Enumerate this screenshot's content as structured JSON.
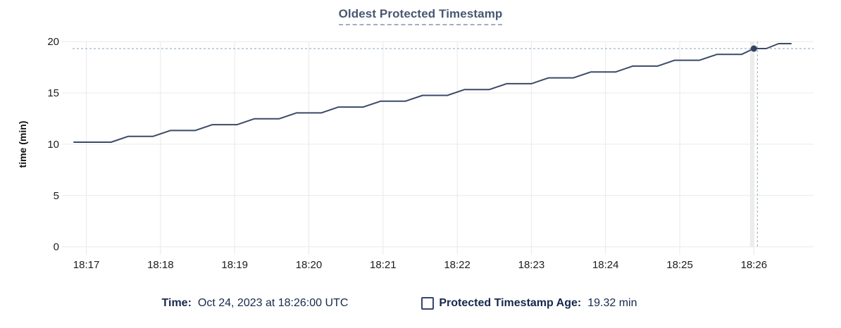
{
  "chart": {
    "title": "Oldest Protected Timestamp",
    "y_axis_label": "time (min)"
  },
  "legend": {
    "time_label": "Time:",
    "time_value": "Oct 24, 2023 at 18:26:00 UTC",
    "series_label": "Protected Timestamp Age:",
    "series_value": "19.32 min"
  },
  "colors": {
    "title": "#475872",
    "navy_text": "#15294b",
    "line": "#3a4a68",
    "marker": "#33435f",
    "grid": "#e8e9eb",
    "hover_band": "#ececec",
    "crosshair": "#a0b5c4",
    "tick_text": "#1c1c1e"
  },
  "chart_data": {
    "type": "line",
    "title": "Oldest Protected Timestamp",
    "xlabel": "",
    "ylabel": "time (min)",
    "ylim": [
      0,
      20
    ],
    "y_ticks": [
      0,
      5,
      10,
      15,
      20
    ],
    "x_tick_labels": [
      "18:17",
      "18:18",
      "18:19",
      "18:20",
      "18:21",
      "18:22",
      "18:23",
      "18:24",
      "18:25",
      "18:26"
    ],
    "x_tick_seconds": [
      10,
      70,
      130,
      190,
      250,
      310,
      370,
      430,
      490,
      550
    ],
    "x_range_seconds": [
      0,
      580
    ],
    "grid": true,
    "legend_position": "bottom",
    "series": [
      {
        "name": "Protected Timestamp Age",
        "unit": "min",
        "color": "#3a4a68",
        "points_t_seconds_value_min": [
          [
            0,
            10.2
          ],
          [
            30,
            10.2
          ],
          [
            44,
            10.77
          ],
          [
            64,
            10.77
          ],
          [
            78,
            11.34
          ],
          [
            98,
            11.34
          ],
          [
            112,
            11.91
          ],
          [
            132,
            11.91
          ],
          [
            146,
            12.48
          ],
          [
            166,
            12.48
          ],
          [
            180,
            13.05
          ],
          [
            200,
            13.05
          ],
          [
            214,
            13.62
          ],
          [
            234,
            13.62
          ],
          [
            248,
            14.19
          ],
          [
            268,
            14.19
          ],
          [
            282,
            14.76
          ],
          [
            302,
            14.76
          ],
          [
            316,
            15.33
          ],
          [
            336,
            15.33
          ],
          [
            350,
            15.9
          ],
          [
            370,
            15.9
          ],
          [
            384,
            16.47
          ],
          [
            404,
            16.47
          ],
          [
            418,
            17.04
          ],
          [
            438,
            17.04
          ],
          [
            452,
            17.61
          ],
          [
            472,
            17.61
          ],
          [
            486,
            18.18
          ],
          [
            506,
            18.18
          ],
          [
            520,
            18.75
          ],
          [
            540,
            18.75
          ],
          [
            550,
            19.32
          ],
          [
            560,
            19.32
          ],
          [
            570,
            19.8
          ],
          [
            580,
            19.8
          ]
        ]
      }
    ],
    "hover_point": {
      "t_seconds": 550,
      "value_min": 19.32,
      "time_label": "Oct 24, 2023 at 18:26:00 UTC",
      "value_label": "19.32 min"
    }
  }
}
